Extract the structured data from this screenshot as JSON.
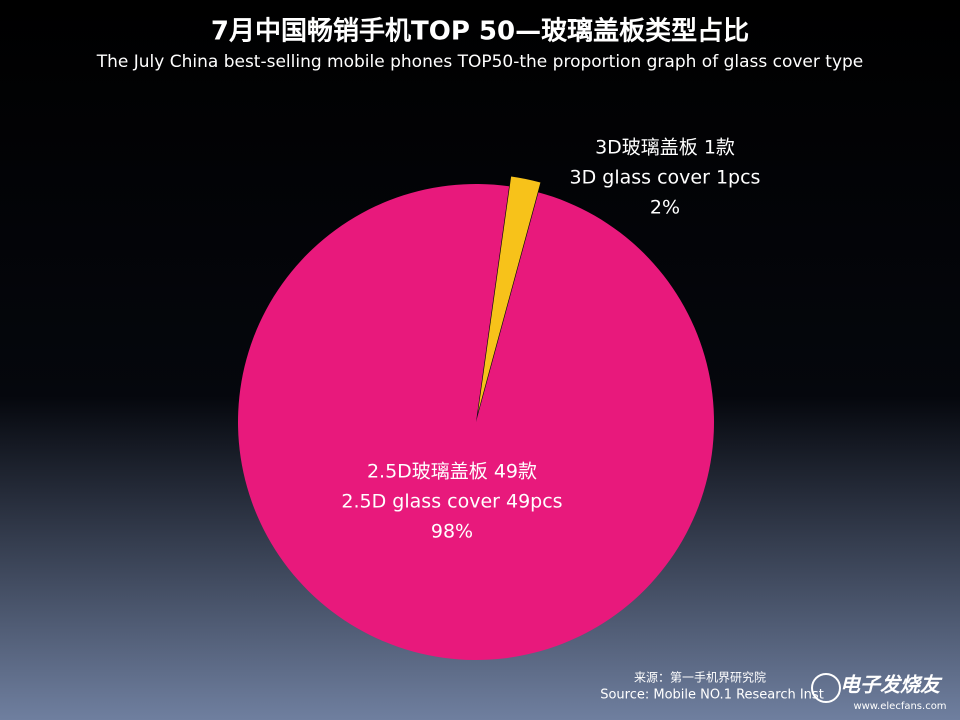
{
  "chart_data": {
    "type": "pie",
    "title": "7月中国畅销手机TOP 50—玻璃盖板类型占比",
    "subtitle": "The July China best-selling mobile phones TOP50-the proportion graph of glass cover type",
    "categories": [
      "2.5D玻璃盖板 49款",
      "3D玻璃盖板 1款"
    ],
    "categories_en": [
      "2.5D glass cover 49pcs",
      "3D glass cover 1pcs"
    ],
    "values": [
      98,
      2
    ],
    "value_labels": [
      "98%",
      "2%"
    ],
    "colors": [
      "#e8197c",
      "#f7c21a"
    ],
    "source": [
      "来源：第一手机界研究院",
      "Source: Mobile NO.1 Research Inst"
    ]
  },
  "watermark": [
    "电子发烧友",
    "www.elecfans.com"
  ]
}
